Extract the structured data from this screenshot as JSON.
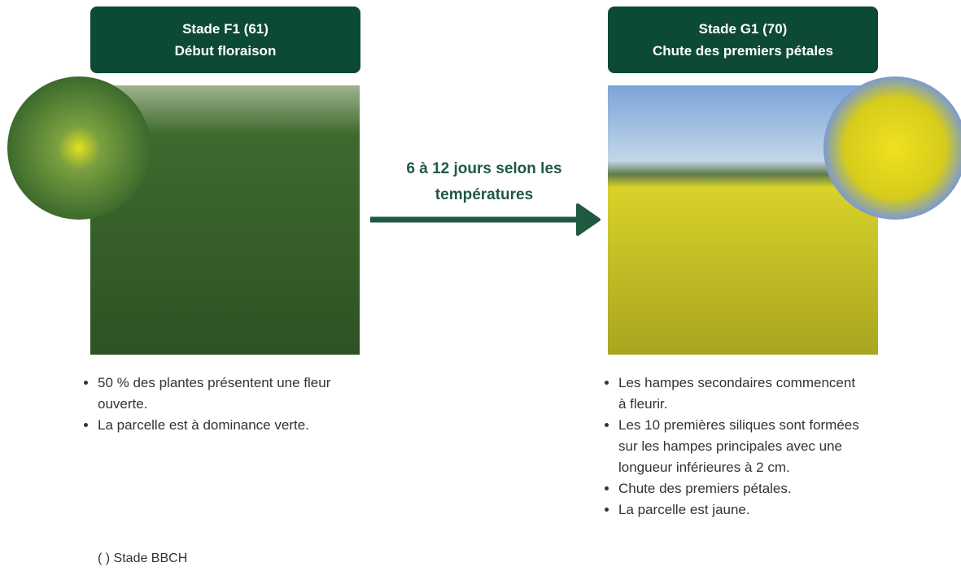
{
  "stages": [
    {
      "title": "Stade F1 (61)",
      "subtitle": "Début floraison",
      "bullets": [
        "50 % des plantes présentent une fleur ouverte.",
        "La parcelle est à dominance verte."
      ]
    },
    {
      "title": "Stade G1 (70)",
      "subtitle": "Chute des premiers pétales",
      "bullets": [
        "Les hampes secondaires commencent à fleurir.",
        "Les 10 premières siliques sont formées sur les hampes principales avec une longueur inférieures à 2 cm.",
        "Chute des premiers pétales.",
        "La parcelle est jaune."
      ]
    }
  ],
  "transition": "6 à 12 jours selon les températures",
  "footnote": "( ) Stade BBCH"
}
